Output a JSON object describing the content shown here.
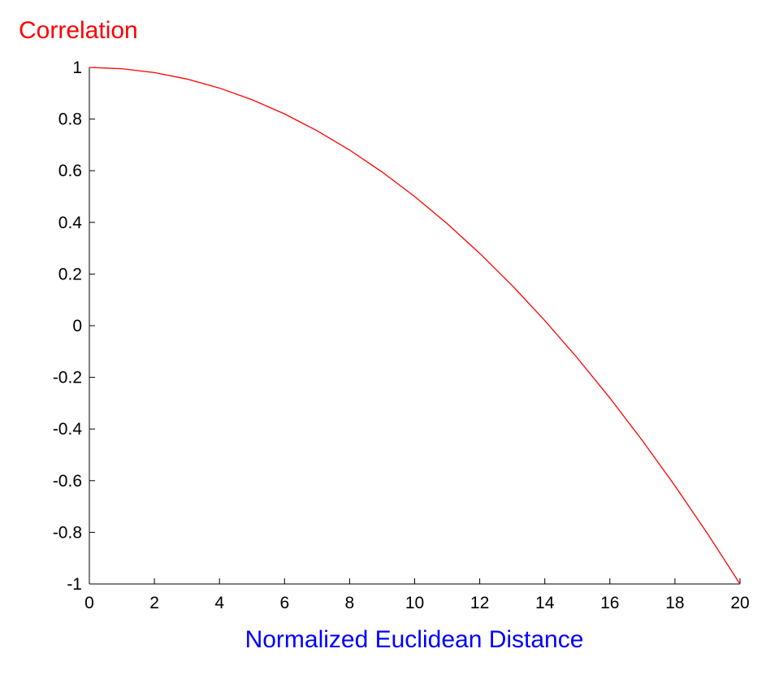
{
  "chart_data": {
    "type": "line",
    "title": "",
    "ylabel": "Correlation",
    "xlabel": "Normalized Euclidean Distance",
    "xlim": [
      0,
      20
    ],
    "ylim": [
      -1,
      1
    ],
    "xticks": [
      "0",
      "2",
      "4",
      "6",
      "8",
      "10",
      "12",
      "14",
      "16",
      "18",
      "20"
    ],
    "yticks": [
      "1",
      "0.8",
      "0.6",
      "0.4",
      "0.2",
      "0",
      "-0.2",
      "-0.4",
      "-0.6",
      "-0.8",
      "-1"
    ],
    "grid": false,
    "legend": "none",
    "series": [
      {
        "color": "#ff0000",
        "x": [
          0,
          1,
          2,
          3,
          4,
          5,
          6,
          7,
          8,
          9,
          10,
          11,
          12,
          13,
          14,
          15,
          16,
          17,
          18,
          19,
          20
        ],
        "y": [
          1.0,
          0.995,
          0.98,
          0.955,
          0.92,
          0.875,
          0.82,
          0.755,
          0.68,
          0.595,
          0.5,
          0.395,
          0.28,
          0.155,
          0.02,
          -0.125,
          -0.28,
          -0.445,
          -0.62,
          -0.805,
          -1.0
        ]
      }
    ],
    "colors": {
      "ylabel": "#ff0000",
      "xlabel": "#0000ff",
      "axes": "#000000"
    }
  }
}
